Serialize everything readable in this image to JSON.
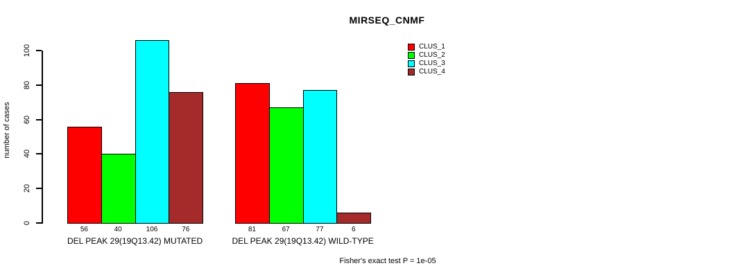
{
  "chart_data": {
    "type": "bar",
    "title": "MIRSEQ_CNMF",
    "ylabel": "number of cases",
    "xlabel": "",
    "ylim": [
      0,
      100
    ],
    "yticks": [
      0,
      20,
      40,
      60,
      80,
      100
    ],
    "grid": false,
    "legend_position": "right",
    "categories": [
      "DEL PEAK 29(19Q13.42) MUTATED",
      "DEL PEAK 29(19Q13.42) WILD-TYPE"
    ],
    "series": [
      {
        "name": "CLUS_1",
        "color": "#ff0000",
        "values": [
          56,
          81
        ]
      },
      {
        "name": "CLUS_2",
        "color": "#00ff00",
        "values": [
          40,
          67
        ]
      },
      {
        "name": "CLUS_3",
        "color": "#00ffff",
        "values": [
          106,
          77
        ]
      },
      {
        "name": "CLUS_4",
        "color": "#a52a2a",
        "values": [
          76,
          6
        ]
      }
    ],
    "bar_value_labels": [
      [
        "56",
        "40",
        "106",
        "76"
      ],
      [
        "81",
        "67",
        "77",
        "6"
      ]
    ],
    "footnote": "Fisher's exact test P = 1e-05"
  }
}
